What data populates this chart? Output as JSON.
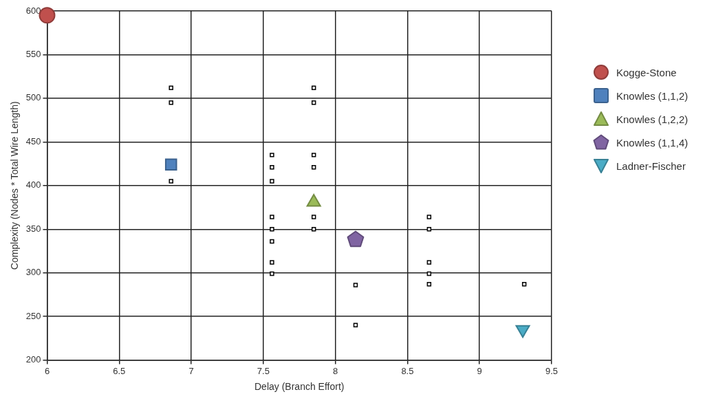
{
  "chart_data": {
    "type": "scatter",
    "xlabel": "Delay (Branch Effort)",
    "ylabel": "Complexity (Nodes * Total Wire Length)",
    "series": [
      {
        "color": "#000000",
        "marker": "square",
        "x": [
          6.86,
          6.86,
          6.86,
          7.56,
          7.56,
          7.56,
          7.56,
          7.56,
          7.56,
          7.56,
          7.56,
          7.85,
          7.85,
          7.85,
          7.85,
          7.85,
          7.85,
          8.14,
          8.14,
          8.65,
          8.65,
          8.65,
          8.65,
          8.65,
          9.31
        ],
        "values": [
          512,
          495,
          405,
          435,
          421,
          405,
          364,
          350,
          336,
          312,
          299,
          512,
          495,
          435,
          421,
          364,
          350,
          286,
          240,
          364,
          350,
          312,
          299,
          287,
          287
        ]
      },
      {
        "name": "Kogge-Stone",
        "color": "#c0504d",
        "marker": "circle",
        "x": [
          6.0
        ],
        "values": [
          595
        ]
      },
      {
        "name": "Knowles (1,1,2)",
        "color": "#4f81bd",
        "marker": "square",
        "x": [
          6.86
        ],
        "values": [
          424
        ]
      },
      {
        "name": "Knowles (1,2,2)",
        "color": "#9bbb59",
        "marker": "triangle",
        "x": [
          7.85
        ],
        "values": [
          381
        ]
      },
      {
        "name": "Knowles (1,1,4)",
        "color": "#8064a2",
        "x": [
          8.14
        ],
        "values": [
          338
        ]
      },
      {
        "name": "Ladner-Fischer",
        "color": "#4bacc6",
        "marker": "triangle-down",
        "x": [
          9.3
        ],
        "values": [
          235
        ]
      }
    ],
    "xlim": [
      6,
      9.5
    ],
    "xticks": [
      6,
      6.5,
      7,
      7.5,
      8,
      8.5,
      9,
      9.5
    ],
    "ylim": [
      200,
      600
    ],
    "yticks": [
      200,
      250,
      300,
      350,
      400,
      450,
      500,
      550,
      600
    ],
    "grid": true,
    "legend": "right"
  }
}
